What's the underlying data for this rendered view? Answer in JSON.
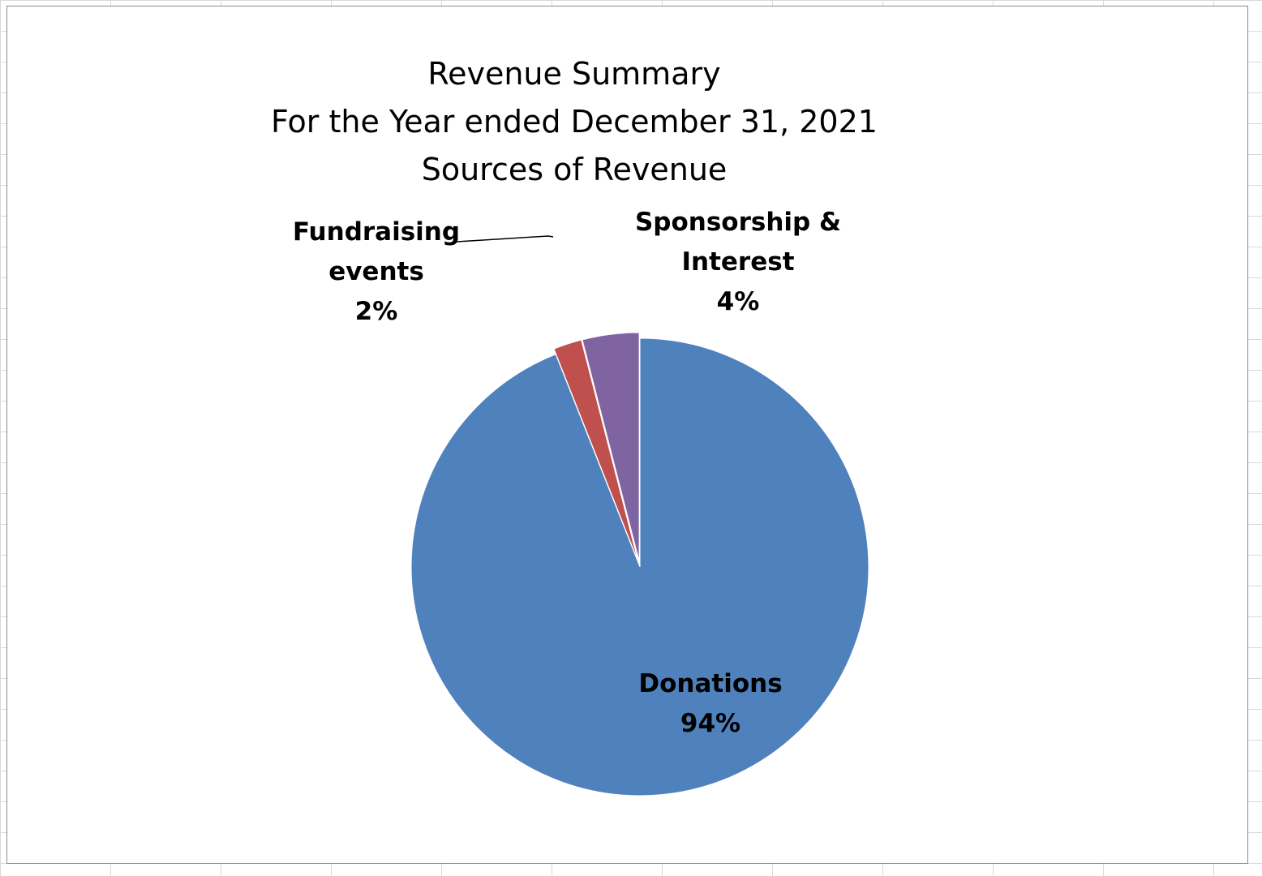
{
  "chart_data": {
    "type": "pie",
    "title_lines": [
      "Revenue Summary",
      "For the Year ended December 31, 2021",
      "Sources of Revenue"
    ],
    "slices": [
      {
        "name": "Donations",
        "value": 94,
        "label_lines": [
          "Donations",
          "94%"
        ],
        "color": "#4F81BD"
      },
      {
        "name": "Fundraising events",
        "value": 2,
        "label_lines": [
          "Fundraising",
          "events",
          "2%"
        ],
        "color": "#C0504D"
      },
      {
        "name": "Sponsorship & Interest",
        "value": 4,
        "label_lines": [
          "Sponsorship &",
          "Interest",
          "4%"
        ],
        "color": "#8064A2"
      }
    ],
    "unit": "%",
    "legend": "none",
    "exploded": true
  }
}
